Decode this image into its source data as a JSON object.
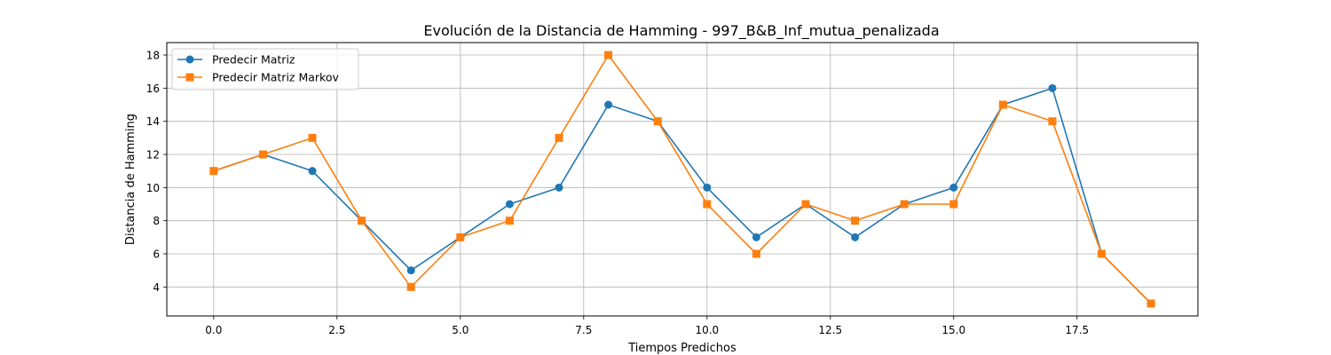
{
  "chart_data": {
    "type": "line",
    "title": "Evolución de la Distancia de Hamming - 997_B&B_Inf_mutua_penalizada",
    "xlabel": "Tiempos Predichos",
    "ylabel": "Distancia de Hamming",
    "xlim": [
      -0.95,
      19.95
    ],
    "ylim": [
      2.25,
      18.75
    ],
    "xticks": [
      0.0,
      2.5,
      5.0,
      7.5,
      10.0,
      12.5,
      15.0,
      17.5
    ],
    "xtick_labels": [
      "0.0",
      "2.5",
      "5.0",
      "7.5",
      "10.0",
      "12.5",
      "15.0",
      "17.5"
    ],
    "yticks": [
      4,
      6,
      8,
      10,
      12,
      14,
      16,
      18
    ],
    "ytick_labels": [
      "4",
      "6",
      "8",
      "10",
      "12",
      "14",
      "16",
      "18"
    ],
    "grid": true,
    "legend_position": "top-left",
    "x": [
      0,
      1,
      2,
      3,
      4,
      5,
      6,
      7,
      8,
      9,
      10,
      11,
      12,
      13,
      14,
      15,
      16,
      17,
      18,
      19
    ],
    "series": [
      {
        "name": "Predecir Matriz",
        "color": "#1f77b4",
        "marker": "circle",
        "values": [
          11,
          12,
          11,
          8,
          5,
          7,
          9,
          10,
          15,
          14,
          10,
          7,
          9,
          7,
          9,
          10,
          15,
          16,
          6,
          3
        ]
      },
      {
        "name": "Predecir Matriz Markov",
        "color": "#ff7f0e",
        "marker": "square",
        "values": [
          11,
          12,
          13,
          8,
          4,
          7,
          8,
          13,
          18,
          14,
          9,
          6,
          9,
          8,
          9,
          9,
          15,
          14,
          6,
          3
        ]
      }
    ]
  }
}
